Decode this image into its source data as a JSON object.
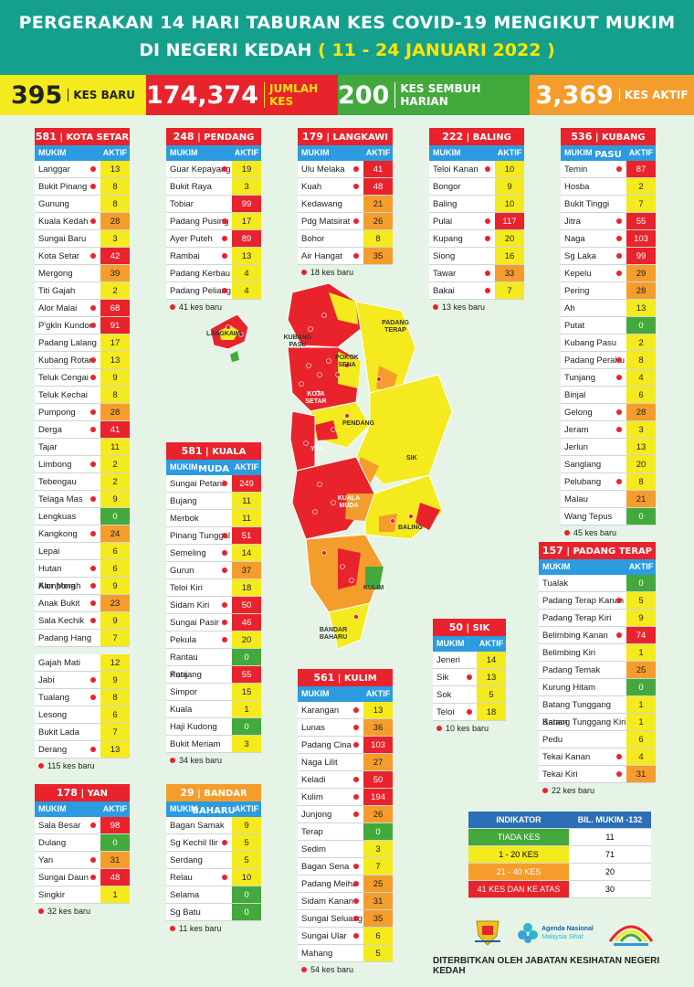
{
  "header": {
    "line1": "PERGERAKAN 14 HARI TABURAN KES COVID-19 MENGIKUT MUKIM",
    "line2a": "DI NEGERI KEDAH",
    "line2b": "( 11 - 24 JANUARI 2022 )"
  },
  "stats": {
    "baru": {
      "value": "395",
      "label": "KES BARU"
    },
    "jumlah": {
      "value": "174,374",
      "label": "JUMLAH KES"
    },
    "sembuh": {
      "value": "200",
      "label": "KES SEMBUH HARIAN"
    },
    "aktif": {
      "value": "3,369",
      "label": "KES AKTIF"
    }
  },
  "columns": {
    "mukim": "MUKIM",
    "aktif": "AKTIF"
  },
  "colors": {
    "red": "#e8232c",
    "orange": "#f49d2c",
    "yellow": "#f4ea1d",
    "green": "#43a93c",
    "blue": "#2d9be0"
  },
  "districts": {
    "kota_setar": {
      "total": "581",
      "name": "| KOTA SETAR",
      "note": "115 kes baru",
      "rows": [
        [
          "Langgar",
          "13",
          1
        ],
        [
          "Bukit Pinang",
          "8",
          1
        ],
        [
          "Gunung",
          "8",
          0
        ],
        [
          "Kuala Kedah",
          "28",
          1
        ],
        [
          "Sungai Baru",
          "3",
          0
        ],
        [
          "Kota Setar",
          "42",
          1
        ],
        [
          "Mergong",
          "39",
          0
        ],
        [
          "Titi Gajah",
          "2",
          0
        ],
        [
          "Alor Malai",
          "68",
          1
        ],
        [
          "P'gkln Kundor",
          "91",
          1
        ],
        [
          "Padang Lalang",
          "17",
          0
        ],
        [
          "Kubang Rotan",
          "13",
          1
        ],
        [
          "Teluk Cengai",
          "9",
          1
        ],
        [
          "Teluk Kechai",
          "8",
          0
        ],
        [
          "Pumpong",
          "28",
          1
        ],
        [
          "Derga",
          "41",
          1
        ],
        [
          "Tajar",
          "11",
          0
        ],
        [
          "Limbong",
          "2",
          1
        ],
        [
          "Tebengau",
          "2",
          0
        ],
        [
          "Telaga Mas",
          "9",
          1
        ],
        [
          "Lengkuas",
          "0",
          0
        ],
        [
          "Kangkong",
          "24",
          1
        ],
        [
          "Lepai",
          "6",
          0
        ],
        [
          "Hutan Kampong",
          "6",
          1
        ],
        [
          "Alor Merah",
          "9",
          1
        ],
        [
          "Anak Bukit",
          "23",
          1
        ],
        [
          "Sala Kechik",
          "9",
          1
        ],
        [
          "Padang Hang",
          "7",
          0
        ]
      ],
      "rows2": [
        [
          "Gajah Mati",
          "12",
          0
        ],
        [
          "Jabi",
          "9",
          1
        ],
        [
          "Tualang",
          "8",
          1
        ],
        [
          "Lesong",
          "6",
          0
        ],
        [
          "Bukit Lada",
          "7",
          0
        ],
        [
          "Derang",
          "13",
          1
        ]
      ]
    },
    "pendang": {
      "total": "248",
      "name": "| PENDANG",
      "note": "41 kes baru",
      "rows": [
        [
          "Guar Kepayang",
          "19",
          1
        ],
        [
          "Bukit Raya",
          "3",
          0
        ],
        [
          "Tobiar",
          "99",
          0
        ],
        [
          "Padang Pusing",
          "17",
          1
        ],
        [
          "Ayer Puteh",
          "89",
          1
        ],
        [
          "Rambai",
          "13",
          1
        ],
        [
          "Padang Kerbau",
          "4",
          0
        ],
        [
          "Padang Peliang",
          "4",
          1
        ]
      ]
    },
    "langkawi": {
      "total": "179",
      "name": "| LANGKAWI",
      "note": "18 kes baru",
      "rows": [
        [
          "Ulu Melaka",
          "41",
          1
        ],
        [
          "Kuah",
          "48",
          1
        ],
        [
          "Kedawang",
          "21",
          0
        ],
        [
          "Pdg Matsirat",
          "26",
          1
        ],
        [
          "Bohor",
          "8",
          0
        ],
        [
          "Air Hangat",
          "35",
          1
        ]
      ]
    },
    "baling": {
      "total": "222",
      "name": "| BALING",
      "note": "13 kes baru",
      "rows": [
        [
          "Teloi Kanan",
          "10",
          1
        ],
        [
          "Bongor",
          "9",
          0
        ],
        [
          "Baling",
          "10",
          0
        ],
        [
          "Pulai",
          "117",
          1
        ],
        [
          "Kupang",
          "20",
          1
        ],
        [
          "Siong",
          "16",
          0
        ],
        [
          "Tawar",
          "33",
          1
        ],
        [
          "Bakai",
          "7",
          1
        ]
      ]
    },
    "kubang_pasu": {
      "total": "536",
      "name": "| KUBANG PASU",
      "note": "45 kes baru",
      "rows": [
        [
          "Temin",
          "87",
          1
        ],
        [
          "Hosba",
          "2",
          0
        ],
        [
          "Bukit Tinggi",
          "7",
          0
        ],
        [
          "Jitra",
          "55",
          1
        ],
        [
          "Naga",
          "103",
          1
        ],
        [
          "Sg Laka",
          "99",
          1
        ],
        [
          "Kepelu",
          "29",
          1
        ],
        [
          "Pering",
          "28",
          0
        ],
        [
          "Ah",
          "13",
          0
        ],
        [
          "Putat",
          "0",
          0
        ],
        [
          "Kubang Pasu",
          "2",
          0
        ],
        [
          "Padang Perahu",
          "8",
          1
        ],
        [
          "Tunjang",
          "4",
          1
        ],
        [
          "Binjal",
          "6",
          0
        ],
        [
          "Gelong",
          "28",
          1
        ],
        [
          "Jeram",
          "3",
          1
        ],
        [
          "Jerlun",
          "13",
          0
        ],
        [
          "Sanglang",
          "20",
          0
        ],
        [
          "Pelubang",
          "8",
          1
        ],
        [
          "Malau",
          "21",
          0
        ],
        [
          "Wang Tepus",
          "0",
          0
        ]
      ]
    },
    "kuala_muda": {
      "total": "581",
      "name": "| KUALA MUDA",
      "note": "34 kes baru",
      "rows": [
        [
          "Sungai Petani",
          "249",
          1
        ],
        [
          "Bujang",
          "11",
          0
        ],
        [
          "Merbok",
          "11",
          0
        ],
        [
          "Pinang Tunggal",
          "51",
          1
        ],
        [
          "Semeling",
          "14",
          1
        ],
        [
          "Gurun",
          "37",
          1
        ],
        [
          "Teloi Kiri",
          "18",
          0
        ],
        [
          "Sidam Kiri",
          "50",
          1
        ],
        [
          "Sungai Pasir",
          "46",
          1
        ],
        [
          "Pekula",
          "20",
          1
        ],
        [
          "Rantau Panjang",
          "0",
          0
        ],
        [
          "Kota",
          "55",
          0
        ],
        [
          "Simpor",
          "15",
          0
        ],
        [
          "Kuala",
          "1",
          0
        ],
        [
          "Haji Kudong",
          "0",
          0
        ],
        [
          "Bukit Meriam",
          "3",
          0
        ]
      ]
    },
    "padang_terap": {
      "total": "157",
      "name": "| PADANG TERAP",
      "note": "22 kes baru",
      "rows": [
        [
          "Tualak",
          "0",
          0
        ],
        [
          "Padang Terap Kanan",
          "5",
          1
        ],
        [
          "Padang Terap Kiri",
          "9",
          0
        ],
        [
          "Belimbing Kanan",
          "74",
          1
        ],
        [
          "Belimbing Kiri",
          "1",
          0
        ],
        [
          "Padang Temak",
          "25",
          0
        ],
        [
          "Kurung Hitam",
          "0",
          0
        ],
        [
          "Batang Tunggang Kanan",
          "1",
          0
        ],
        [
          "Batang Tunggang Kiri",
          "1",
          0
        ],
        [
          "Pedu",
          "6",
          0
        ],
        [
          "Tekai Kanan",
          "4",
          1
        ],
        [
          "Tekai Kiri",
          "31",
          1
        ]
      ]
    },
    "sik": {
      "total": "50",
      "name": "| SIK",
      "note": "10 kes baru",
      "rows": [
        [
          "Jeneri",
          "14",
          0
        ],
        [
          "Sik",
          "13",
          1
        ],
        [
          "Sok",
          "5",
          0
        ],
        [
          "Teloi",
          "18",
          1
        ]
      ]
    },
    "kulim": {
      "total": "561",
      "name": "| KULIM",
      "note": "54 kes baru",
      "rows": [
        [
          "Karangan",
          "13",
          1
        ],
        [
          "Lunas",
          "36",
          1
        ],
        [
          "Padang Cina",
          "103",
          1
        ],
        [
          "Naga Lilit",
          "27",
          0
        ],
        [
          "Keladi",
          "50",
          1
        ],
        [
          "Kulim",
          "194",
          1
        ],
        [
          "Junjong",
          "26",
          1
        ],
        [
          "Terap",
          "0",
          0
        ],
        [
          "Sedim",
          "3",
          0
        ],
        [
          "Bagan Sena",
          "7",
          1
        ],
        [
          "Padang Meiha",
          "25",
          1
        ],
        [
          "Sidam Kanan",
          "31",
          1
        ],
        [
          "Sungai Seluang",
          "35",
          1
        ],
        [
          "Sungai Ular",
          "6",
          1
        ],
        [
          "Mahang",
          "5",
          0
        ]
      ]
    },
    "yan": {
      "total": "178",
      "name": "| YAN",
      "note": "32 kes baru",
      "rows": [
        [
          "Sala Besar",
          "98",
          1
        ],
        [
          "Dulang",
          "0",
          0
        ],
        [
          "Yan",
          "31",
          1
        ],
        [
          "Sungai Daun",
          "48",
          1
        ],
        [
          "Singkir",
          "1",
          0
        ]
      ]
    },
    "bandar_baharu": {
      "total": "29",
      "name": "| BANDAR BAHARU",
      "note": "11 kes baru",
      "rows": [
        [
          "Bagan Samak",
          "9",
          0
        ],
        [
          "Sg Kechil Ilir",
          "5",
          1
        ],
        [
          "Serdang",
          "5",
          0
        ],
        [
          "Relau",
          "10",
          1
        ],
        [
          "Selama",
          "0",
          0
        ],
        [
          "Sg Batu",
          "0",
          0
        ]
      ]
    }
  },
  "map_labels": [
    "LANGKAWI",
    "KUBANG PASU",
    "PADANG TERAP",
    "POKOK SENA",
    "KOTA SETAR",
    "PENDANG",
    "YAN",
    "SIK",
    "KUALA MUDA",
    "BALING",
    "KULIM",
    "BANDAR BAHARU"
  ],
  "indikator": {
    "h1": "INDIKATOR",
    "h2": "BIL. MUKIM -132",
    "rows": [
      [
        "TIADA KES",
        "11"
      ],
      [
        "1 - 20 KES",
        "71"
      ],
      [
        "21 - 40 KES",
        "20"
      ],
      [
        "41 KES DAN KE ATAS",
        "30"
      ]
    ]
  },
  "footer": "DITERBITKAN OLEH JABATAN KESIHATAN NEGERI KEDAH",
  "logos": {
    "agenda": "Agenda Nasional",
    "agenda_sub": "Malaysia Sihat"
  }
}
